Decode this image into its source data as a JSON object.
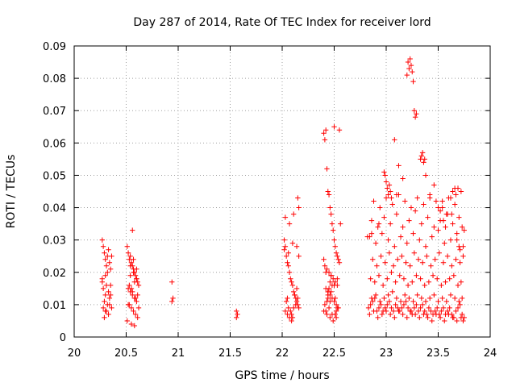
{
  "chart_data": {
    "type": "scatter",
    "title": "Day 287 of 2014, Rate Of TEC Index for receiver lord",
    "xlabel": "GPS time / hours",
    "ylabel": "ROTI / TECUs",
    "xlim": [
      20,
      24
    ],
    "ylim": [
      0,
      0.09
    ],
    "xticks": [
      "20",
      "20.5",
      "21",
      "21.5",
      "22",
      "22.5",
      "23",
      "23.5",
      "24"
    ],
    "yticks": [
      "0",
      "0.01",
      "0.02",
      "0.03",
      "0.04",
      "0.05",
      "0.06",
      "0.07",
      "0.08",
      "0.09"
    ],
    "grid": true,
    "marker": "+",
    "color": "#ff0000",
    "series": [
      {
        "name": "ROTI",
        "x": [
          20.27,
          20.28,
          20.29,
          20.3,
          20.31,
          20.32,
          20.33,
          20.34,
          20.35,
          20.36,
          20.27,
          20.28,
          20.3,
          20.31,
          20.33,
          20.34,
          20.29,
          20.32,
          20.35,
          20.28,
          20.3,
          20.33,
          20.36,
          20.29,
          20.31,
          20.34,
          20.27,
          20.32,
          20.35,
          20.3,
          20.51,
          20.52,
          20.53,
          20.54,
          20.55,
          20.56,
          20.57,
          20.58,
          20.59,
          20.6,
          20.61,
          20.62,
          20.52,
          20.54,
          20.56,
          20.58,
          20.6,
          20.53,
          20.55,
          20.57,
          20.59,
          20.61,
          20.51,
          20.55,
          20.58,
          20.62,
          20.54,
          20.57,
          20.6,
          20.53,
          20.56,
          20.59,
          20.52,
          20.61,
          20.55,
          20.58,
          20.54,
          20.6,
          20.57,
          20.56,
          20.94,
          20.95,
          20.94,
          21.56,
          21.57,
          21.56,
          22.02,
          22.03,
          22.04,
          22.05,
          22.06,
          22.07,
          22.08,
          22.09,
          22.1,
          22.11,
          22.12,
          22.13,
          22.14,
          22.15,
          22.16,
          22.03,
          22.05,
          22.07,
          22.09,
          22.11,
          22.13,
          22.15,
          22.04,
          22.06,
          22.08,
          22.1,
          22.12,
          22.14,
          22.02,
          22.06,
          22.1,
          22.14,
          22.16,
          22.15,
          22.16,
          22.03,
          22.07,
          22.11,
          22.05,
          22.09,
          22.4,
          22.41,
          22.42,
          22.43,
          22.44,
          22.45,
          22.46,
          22.47,
          22.48,
          22.49,
          22.5,
          22.51,
          22.52,
          22.53,
          22.54,
          22.55,
          22.41,
          22.43,
          22.45,
          22.47,
          22.49,
          22.51,
          22.53,
          22.42,
          22.44,
          22.46,
          22.48,
          22.5,
          22.52,
          22.54,
          22.4,
          22.43,
          22.46,
          22.49,
          22.52,
          22.41,
          22.44,
          22.47,
          22.5,
          22.53,
          22.42,
          22.43,
          22.44,
          22.45,
          22.46,
          22.47,
          22.45,
          22.48,
          22.52,
          22.51,
          22.5,
          22.55,
          22.56,
          22.4,
          22.44,
          22.48,
          22.53,
          22.46,
          22.42,
          22.51,
          22.83,
          22.85,
          22.87,
          22.89,
          22.91,
          22.93,
          22.95,
          22.97,
          22.99,
          23.01,
          23.03,
          23.05,
          23.07,
          23.09,
          23.11,
          23.13,
          23.15,
          23.17,
          23.19,
          23.21,
          23.23,
          23.25,
          23.27,
          23.29,
          23.31,
          23.33,
          23.35,
          23.37,
          23.39,
          23.41,
          23.43,
          23.45,
          23.47,
          23.49,
          23.51,
          23.53,
          23.55,
          23.57,
          23.59,
          23.61,
          23.63,
          23.65,
          23.67,
          23.69,
          23.71,
          23.73,
          23.75,
          22.84,
          22.88,
          22.92,
          22.96,
          23.0,
          23.04,
          23.08,
          23.12,
          23.16,
          23.2,
          23.24,
          23.28,
          23.32,
          23.36,
          23.4,
          23.44,
          23.48,
          23.52,
          23.56,
          23.6,
          23.64,
          23.68,
          23.72,
          23.74,
          22.86,
          22.9,
          22.94,
          22.98,
          23.02,
          23.06,
          23.1,
          23.14,
          23.18,
          23.22,
          23.26,
          23.3,
          23.34,
          23.38,
          23.42,
          23.46,
          23.5,
          23.54,
          23.58,
          23.62,
          23.66,
          23.7,
          23.73,
          22.85,
          22.89,
          22.93,
          22.97,
          23.01,
          23.05,
          23.09,
          23.13,
          23.17,
          23.21,
          23.25,
          23.29,
          23.33,
          23.37,
          23.41,
          23.45,
          23.49,
          23.53,
          23.57,
          23.61,
          23.65,
          23.69,
          23.72,
          22.87,
          22.91,
          22.95,
          22.99,
          23.03,
          23.07,
          23.11,
          23.15,
          23.19,
          23.23,
          23.27,
          23.31,
          23.35,
          23.39,
          23.43,
          23.47,
          23.51,
          23.55,
          23.59,
          23.63,
          23.67,
          23.71,
          23.74,
          22.84,
          22.9,
          22.96,
          23.02,
          23.08,
          23.14,
          23.2,
          23.26,
          23.32,
          23.38,
          23.44,
          23.5,
          23.56,
          23.62,
          23.68,
          23.74,
          22.86,
          22.92,
          22.98,
          23.04,
          23.1,
          23.16,
          23.22,
          23.28,
          23.34,
          23.4,
          23.46,
          23.52,
          23.58,
          23.64,
          23.7,
          22.88,
          22.94,
          23.0,
          23.06,
          23.12,
          23.18,
          23.24,
          23.3,
          23.36,
          23.42,
          23.48,
          23.54,
          23.6,
          23.66,
          23.72,
          22.98,
          22.99,
          23.0,
          23.01,
          23.02,
          23.03,
          23.04,
          23.05,
          23.2,
          23.21,
          23.22,
          23.23,
          23.24,
          23.25,
          23.26,
          23.27,
          23.28,
          23.29,
          23.33,
          23.34,
          23.35,
          23.36,
          23.37,
          23.08,
          23.12,
          23.16,
          23.38,
          23.42,
          23.5,
          23.52,
          23.55,
          23.57,
          23.59,
          23.62,
          23.64,
          23.66,
          23.67,
          23.68,
          23.7,
          23.71,
          22.82,
          22.86,
          22.93,
          23.1,
          23.46,
          23.54,
          23.63,
          23.69,
          23.73,
          23.75
        ],
        "y": [
          0.03,
          0.028,
          0.026,
          0.024,
          0.022,
          0.025,
          0.027,
          0.023,
          0.021,
          0.025,
          0.017,
          0.015,
          0.013,
          0.016,
          0.014,
          0.012,
          0.011,
          0.01,
          0.013,
          0.009,
          0.008,
          0.007,
          0.009,
          0.006,
          0.008,
          0.01,
          0.018,
          0.02,
          0.016,
          0.019,
          0.028,
          0.026,
          0.024,
          0.025,
          0.023,
          0.022,
          0.021,
          0.02,
          0.019,
          0.018,
          0.017,
          0.016,
          0.015,
          0.014,
          0.013,
          0.012,
          0.011,
          0.01,
          0.009,
          0.008,
          0.007,
          0.006,
          0.005,
          0.004,
          0.0035,
          0.009,
          0.022,
          0.02,
          0.018,
          0.016,
          0.014,
          0.012,
          0.01,
          0.013,
          0.015,
          0.017,
          0.019,
          0.021,
          0.024,
          0.033,
          0.017,
          0.012,
          0.011,
          0.008,
          0.007,
          0.006,
          0.03,
          0.028,
          0.025,
          0.023,
          0.022,
          0.02,
          0.018,
          0.017,
          0.016,
          0.014,
          0.013,
          0.012,
          0.011,
          0.01,
          0.009,
          0.008,
          0.007,
          0.006,
          0.005,
          0.009,
          0.01,
          0.012,
          0.011,
          0.009,
          0.008,
          0.006,
          0.013,
          0.015,
          0.027,
          0.026,
          0.029,
          0.028,
          0.025,
          0.043,
          0.04,
          0.037,
          0.035,
          0.038,
          0.012,
          0.007,
          0.063,
          0.061,
          0.064,
          0.052,
          0.045,
          0.044,
          0.04,
          0.038,
          0.035,
          0.033,
          0.03,
          0.028,
          0.026,
          0.025,
          0.024,
          0.023,
          0.022,
          0.021,
          0.02,
          0.019,
          0.018,
          0.017,
          0.016,
          0.015,
          0.014,
          0.013,
          0.012,
          0.011,
          0.01,
          0.009,
          0.008,
          0.007,
          0.006,
          0.005,
          0.008,
          0.01,
          0.012,
          0.014,
          0.016,
          0.018,
          0.02,
          0.011,
          0.013,
          0.015,
          0.017,
          0.019,
          0.009,
          0.007,
          0.006,
          0.012,
          0.065,
          0.064,
          0.035,
          0.024,
          0.014,
          0.016,
          0.009,
          0.011,
          0.008,
          0.007,
          0.009,
          0.01,
          0.011,
          0.012,
          0.008,
          0.009,
          0.01,
          0.008,
          0.009,
          0.01,
          0.011,
          0.009,
          0.008,
          0.01,
          0.009,
          0.008,
          0.009,
          0.01,
          0.011,
          0.009,
          0.008,
          0.007,
          0.009,
          0.01,
          0.008,
          0.009,
          0.01,
          0.008,
          0.007,
          0.009,
          0.008,
          0.007,
          0.008,
          0.009,
          0.007,
          0.008,
          0.009,
          0.007,
          0.008,
          0.009,
          0.007,
          0.006,
          0.008,
          0.009,
          0.01,
          0.007,
          0.006,
          0.007,
          0.008,
          0.006,
          0.007,
          0.008,
          0.007,
          0.006,
          0.008,
          0.007,
          0.006,
          0.008,
          0.007,
          0.006,
          0.007,
          0.006,
          0.005,
          0.007,
          0.006,
          0.005,
          0.007,
          0.006,
          0.005,
          0.006,
          0.005,
          0.012,
          0.013,
          0.011,
          0.012,
          0.013,
          0.014,
          0.012,
          0.011,
          0.013,
          0.012,
          0.011,
          0.013,
          0.012,
          0.011,
          0.012,
          0.013,
          0.011,
          0.012,
          0.011,
          0.013,
          0.012,
          0.011,
          0.012,
          0.018,
          0.017,
          0.019,
          0.016,
          0.018,
          0.02,
          0.017,
          0.019,
          0.018,
          0.016,
          0.017,
          0.019,
          0.018,
          0.016,
          0.017,
          0.019,
          0.018,
          0.016,
          0.017,
          0.018,
          0.019,
          0.016,
          0.017,
          0.024,
          0.022,
          0.025,
          0.023,
          0.026,
          0.022,
          0.024,
          0.025,
          0.023,
          0.022,
          0.026,
          0.024,
          0.023,
          0.025,
          0.022,
          0.024,
          0.026,
          0.023,
          0.025,
          0.022,
          0.024,
          0.023,
          0.025,
          0.031,
          0.029,
          0.032,
          0.03,
          0.028,
          0.031,
          0.029,
          0.032,
          0.03,
          0.028,
          0.031,
          0.033,
          0.029,
          0.03,
          0.032,
          0.028,
          0.036,
          0.034,
          0.037,
          0.035,
          0.038,
          0.034,
          0.036,
          0.039,
          0.035,
          0.037,
          0.034,
          0.036,
          0.038,
          0.035,
          0.037,
          0.042,
          0.04,
          0.043,
          0.041,
          0.044,
          0.042,
          0.04,
          0.043,
          0.041,
          0.044,
          0.042,
          0.04,
          0.043,
          0.041,
          0.045,
          0.051,
          0.05,
          0.048,
          0.046,
          0.044,
          0.047,
          0.045,
          0.043,
          0.081,
          0.085,
          0.083,
          0.086,
          0.084,
          0.082,
          0.079,
          0.07,
          0.068,
          0.069,
          0.055,
          0.056,
          0.057,
          0.054,
          0.055,
          0.061,
          0.053,
          0.049,
          0.05,
          0.043,
          0.04,
          0.039,
          0.036,
          0.034,
          0.038,
          0.043,
          0.045,
          0.046,
          0.044,
          0.03,
          0.028,
          0.027,
          0.031,
          0.032,
          0.035,
          0.044,
          0.047,
          0.042,
          0.038,
          0.046,
          0.034,
          0.033
        ]
      }
    ]
  }
}
